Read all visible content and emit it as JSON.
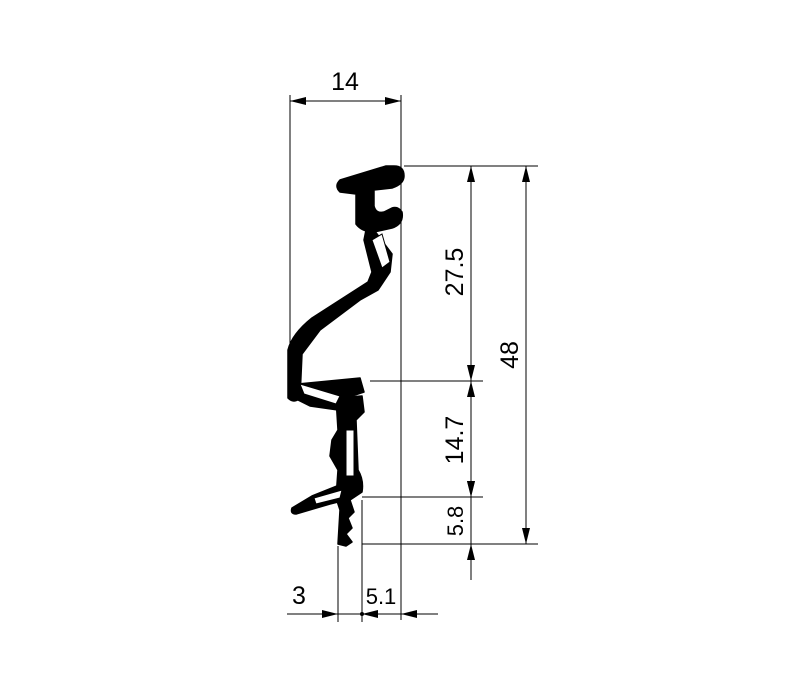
{
  "dimensions": {
    "width_top": "14",
    "upper_height": "27.5",
    "total_height": "48",
    "middle_height": "14.7",
    "bottom_height": "5.8",
    "lip_width": "3",
    "foot_offset": "5.1"
  },
  "colors": {
    "line": "#000000",
    "background": "#ffffff"
  }
}
